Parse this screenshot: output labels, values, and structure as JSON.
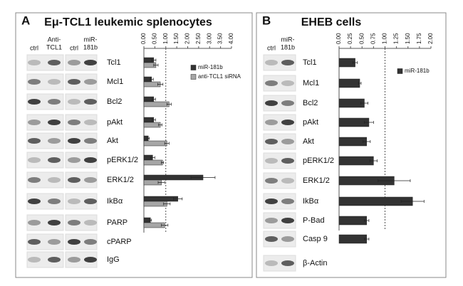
{
  "chart_data": [
    {
      "type": "bar",
      "orientation": "horizontal",
      "panel": "A",
      "title": "Eμ-TCL1 leukemic splenocytes",
      "blot_columns": [
        [
          "ctrl"
        ],
        [
          "Anti-",
          "TCL1"
        ],
        [
          "ctrl"
        ],
        [
          "miR-",
          "181b"
        ]
      ],
      "categories": [
        "Tcl1",
        "Mcl1",
        "Bcl2",
        "pAkt",
        "Akt",
        "pERK1/2",
        "ERK1/2",
        "IkBα",
        "PARP",
        "cPARP",
        "IgG"
      ],
      "series": [
        {
          "name": "miR-181b",
          "color": "#333333",
          "values": [
            0.45,
            0.35,
            0.45,
            0.45,
            0.2,
            0.4,
            2.7,
            1.55,
            0.3,
            null,
            null
          ],
          "errors": [
            0.1,
            0.08,
            0.08,
            0.08,
            0.05,
            0.1,
            0.55,
            0.2,
            0.05,
            null,
            null
          ]
        },
        {
          "name": "anti-TCL1 siRNA",
          "color": "#a6a6a6",
          "values": [
            0.55,
            0.75,
            1.15,
            0.75,
            1.05,
            0.85,
            0.8,
            1.05,
            0.95,
            null,
            null
          ],
          "errors": [
            0.1,
            0.12,
            0.1,
            0.08,
            0.1,
            0.05,
            0.15,
            0.15,
            0.15,
            null,
            null
          ]
        }
      ],
      "xlim": [
        0,
        4
      ],
      "xticks": [
        {
          "value": 0,
          "label": "0.00"
        },
        {
          "value": 0.5,
          "label": "0.50"
        },
        {
          "value": 1,
          "label": "1.00"
        },
        {
          "value": 1.5,
          "label": "1.50"
        },
        {
          "value": 2,
          "label": "2.00"
        },
        {
          "value": 2.5,
          "label": "2.50"
        },
        {
          "value": 3,
          "label": "3.00"
        },
        {
          "value": 3.5,
          "label": "3.50"
        },
        {
          "value": 4,
          "label": "4.00"
        }
      ],
      "reference_line": 1,
      "legend": "right"
    },
    {
      "type": "bar",
      "orientation": "horizontal",
      "panel": "B",
      "title": "EHEB cells",
      "blot_columns": [
        [
          "ctrl"
        ],
        [
          "miR-",
          "181b"
        ]
      ],
      "categories": [
        "Tcl1",
        "Mcl1",
        "Bcl2",
        "pAkt",
        "Akt",
        "pERK1/2",
        "ERK1/2",
        "IkBα",
        "P-Bad",
        "Casp 9",
        "β-Actin"
      ],
      "series": [
        {
          "name": "miR-181b",
          "color": "#333333",
          "values": [
            0.35,
            0.45,
            0.55,
            0.65,
            0.6,
            0.75,
            1.2,
            1.6,
            0.6,
            0.6,
            null
          ],
          "errors": [
            0.05,
            0.03,
            0.08,
            0.1,
            0.08,
            0.08,
            0.35,
            0.25,
            0.05,
            0.05,
            null
          ]
        }
      ],
      "xlim": [
        0,
        2
      ],
      "xticks": [
        {
          "value": 0,
          "label": "0.00"
        },
        {
          "value": 0.25,
          "label": "0.25"
        },
        {
          "value": 0.5,
          "label": "0.50"
        },
        {
          "value": 0.75,
          "label": "0.75"
        },
        {
          "value": 1,
          "label": "1.00"
        },
        {
          "value": 1.25,
          "label": "1.25"
        },
        {
          "value": 1.5,
          "label": "1.50"
        },
        {
          "value": 1.75,
          "label": "1.75"
        },
        {
          "value": 2,
          "label": "2.00"
        }
      ],
      "reference_line": 1,
      "legend": "right"
    }
  ]
}
